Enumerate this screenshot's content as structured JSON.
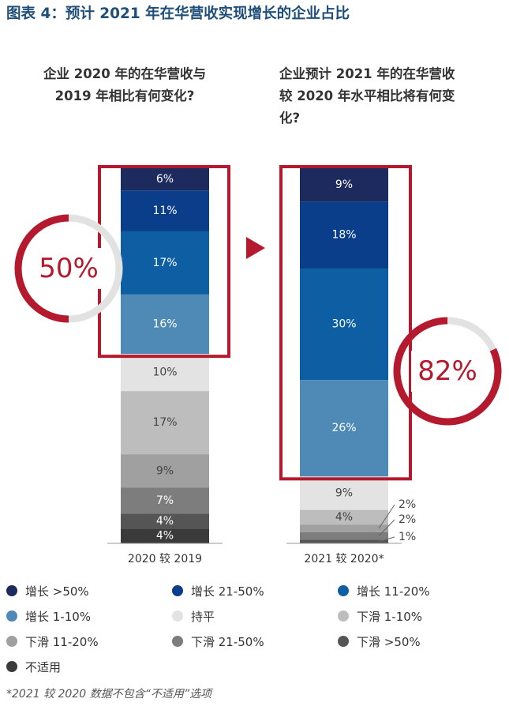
{
  "title": "图表 4：预计 2021 年在华营收实现增长的企业占比",
  "left_heading": "企业 2020 年的在华营收与\n2019 年相比有何变化?",
  "right_heading": "企业预计 2021 年的在华营收\n较 2020 年水平相比将有何变\n化?",
  "footnote": "*2021 较 2020 数据不包含“不适用”选项",
  "colors": {
    "title": "#1f4e79",
    "highlight_red": "#b5192d",
    "ring_track": "#e2e2e2",
    "arrow": "#b5192d"
  },
  "chart_data": {
    "type": "bar",
    "stacked": true,
    "normalized": true,
    "categories": [
      "2020 较 2019",
      "2021 较 2020*"
    ],
    "series": [
      {
        "name": "增长 >50%",
        "color": "#1c2a5e",
        "values": [
          6,
          9
        ]
      },
      {
        "name": "增长 21-50%",
        "color": "#0a3d8a",
        "values": [
          11,
          18
        ]
      },
      {
        "name": "增长 11-20%",
        "color": "#0d5ea3",
        "values": [
          17,
          30
        ]
      },
      {
        "name": "增长 1-10%",
        "color": "#4f8ab6",
        "values": [
          16,
          26
        ]
      },
      {
        "name": "持平",
        "color": "#e3e3e3",
        "values": [
          10,
          9
        ]
      },
      {
        "name": "下滑 1-10%",
        "color": "#bdbdbd",
        "values": [
          17,
          4
        ]
      },
      {
        "name": "下滑 11-20%",
        "color": "#a0a0a0",
        "values": [
          9,
          2
        ]
      },
      {
        "name": "下滑 21-50%",
        "color": "#7d7d7d",
        "values": [
          7,
          2
        ]
      },
      {
        "name": "下滑 >50%",
        "color": "#555555",
        "values": [
          4,
          1
        ]
      },
      {
        "name": "不适用",
        "color": "#3a3a3a",
        "values": [
          4,
          null
        ]
      }
    ],
    "value_labels": {
      "left": [
        "6%",
        "11%",
        "17%",
        "16%",
        "10%",
        "17%",
        "9%",
        "7%",
        "4%",
        "4%"
      ],
      "right": [
        "9%",
        "18%",
        "30%",
        "26%",
        "9%",
        "4%",
        "2%",
        "2%",
        "1%"
      ]
    },
    "growth_share": {
      "left": {
        "value": 50,
        "label": "50%"
      },
      "right": {
        "value": 82,
        "label": "82%"
      }
    }
  },
  "legend": [
    {
      "label": "增长 >50%",
      "color": "#1c2a5e"
    },
    {
      "label": "增长 21-50%",
      "color": "#0a3d8a"
    },
    {
      "label": "增长 11-20%",
      "color": "#0d5ea3"
    },
    {
      "label": "增长 1-10%",
      "color": "#4f8ab6"
    },
    {
      "label": "持平",
      "color": "#e3e3e3"
    },
    {
      "label": "下滑 1-10%",
      "color": "#bdbdbd"
    },
    {
      "label": "下滑 11-20%",
      "color": "#a0a0a0"
    },
    {
      "label": "下滑 21-50%",
      "color": "#7d7d7d"
    },
    {
      "label": "下滑 >50%",
      "color": "#555555"
    },
    {
      "label": "不适用",
      "color": "#3a3a3a"
    }
  ]
}
